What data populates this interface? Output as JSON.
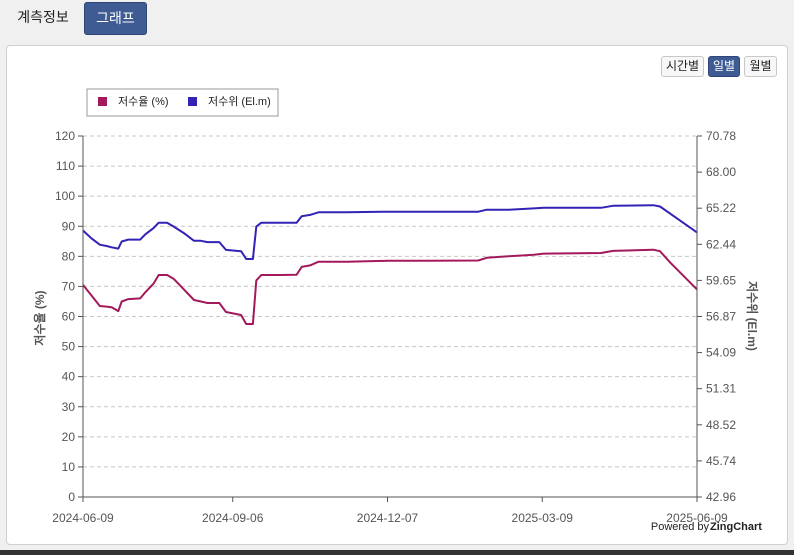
{
  "tabs": [
    {
      "label": "계측정보"
    },
    {
      "label": "그래프"
    }
  ],
  "period_buttons": [
    {
      "label": "시간별"
    },
    {
      "label": "일별"
    },
    {
      "label": "월별"
    }
  ],
  "powered_by": {
    "prefix": "Powered by ",
    "brand": "ZingChart"
  },
  "colors": {
    "series1": "#a3195b",
    "series2": "#3223b5",
    "active_tab": "#3e5b93"
  },
  "chart_data": {
    "type": "line",
    "legend": [
      "저수율 (%)",
      "저수위 (El.m)"
    ],
    "legend_position": "top-left",
    "grid": true,
    "y_left": {
      "label": "저수율 (%)",
      "min": 0,
      "max": 120,
      "ticks": [
        "0",
        "10",
        "20",
        "30",
        "40",
        "50",
        "60",
        "70",
        "80",
        "90",
        "100",
        "110",
        "120"
      ]
    },
    "y_right": {
      "label": "저수위 (El.m)",
      "min": 42.96,
      "max": 70.78,
      "ticks": [
        "42.96",
        "45.74",
        "48.52",
        "51.31",
        "54.09",
        "56.87",
        "59.65",
        "62.44",
        "65.22",
        "68.00",
        "70.78"
      ]
    },
    "x": {
      "start": "2024-06-09",
      "end": "2025-06-09",
      "tick_labels": [
        "2024-06-09",
        "2024-09-06",
        "2024-12-07",
        "2025-03-09",
        "2025-06-09"
      ]
    },
    "series": [
      {
        "name": "저수율 (%)",
        "axis": "left",
        "points": [
          [
            "2024-06-09",
            70.5
          ],
          [
            "2024-06-14",
            67
          ],
          [
            "2024-06-19",
            63.5
          ],
          [
            "2024-06-23",
            63.3
          ],
          [
            "2024-06-26",
            63.1
          ],
          [
            "2024-06-30",
            61.8
          ],
          [
            "2024-07-02",
            65
          ],
          [
            "2024-07-06",
            65.8
          ],
          [
            "2024-07-13",
            66
          ],
          [
            "2024-07-16",
            68
          ],
          [
            "2024-07-21",
            71
          ],
          [
            "2024-07-24",
            73.8
          ],
          [
            "2024-07-29",
            73.8
          ],
          [
            "2024-08-02",
            72.5
          ],
          [
            "2024-08-08",
            69
          ],
          [
            "2024-08-14",
            65.5
          ],
          [
            "2024-08-18",
            65
          ],
          [
            "2024-08-22",
            64.5
          ],
          [
            "2024-08-29",
            64.5
          ],
          [
            "2024-09-02",
            61.5
          ],
          [
            "2024-09-11",
            60.5
          ],
          [
            "2024-09-14",
            57.5
          ],
          [
            "2024-09-18",
            57.5
          ],
          [
            "2024-09-20",
            72
          ],
          [
            "2024-09-23",
            73.8
          ],
          [
            "2024-10-04",
            73.8
          ],
          [
            "2024-10-14",
            73.9
          ],
          [
            "2024-10-17",
            76.5
          ],
          [
            "2024-10-22",
            77
          ],
          [
            "2024-10-27",
            78.2
          ],
          [
            "2024-11-13",
            78.2
          ],
          [
            "2024-12-07",
            78.5
          ],
          [
            "2024-12-30",
            78.5
          ],
          [
            "2025-01-30",
            78.6
          ],
          [
            "2025-02-04",
            79.5
          ],
          [
            "2025-02-17",
            80
          ],
          [
            "2025-03-04",
            80.5
          ],
          [
            "2025-03-10",
            80.9
          ],
          [
            "2025-04-13",
            81.1
          ],
          [
            "2025-04-20",
            81.8
          ],
          [
            "2025-05-14",
            82.2
          ],
          [
            "2025-05-18",
            81.7
          ],
          [
            "2025-05-24",
            78
          ],
          [
            "2025-06-09",
            69
          ]
        ]
      },
      {
        "name": "저수위 (El.m)",
        "axis": "right",
        "points": [
          [
            "2024-06-09",
            63.5
          ],
          [
            "2024-06-14",
            62.9
          ],
          [
            "2024-06-19",
            62.4
          ],
          [
            "2024-06-23",
            62.3
          ],
          [
            "2024-06-26",
            62.2
          ],
          [
            "2024-06-30",
            62.1
          ],
          [
            "2024-07-02",
            62.65
          ],
          [
            "2024-07-06",
            62.8
          ],
          [
            "2024-07-13",
            62.8
          ],
          [
            "2024-07-16",
            63.2
          ],
          [
            "2024-07-21",
            63.7
          ],
          [
            "2024-07-24",
            64.1
          ],
          [
            "2024-07-29",
            64.1
          ],
          [
            "2024-08-02",
            63.8
          ],
          [
            "2024-08-08",
            63.3
          ],
          [
            "2024-08-14",
            62.7
          ],
          [
            "2024-08-18",
            62.7
          ],
          [
            "2024-08-22",
            62.6
          ],
          [
            "2024-08-29",
            62.6
          ],
          [
            "2024-09-02",
            62
          ],
          [
            "2024-09-11",
            61.9
          ],
          [
            "2024-09-14",
            61.3
          ],
          [
            "2024-09-18",
            61.3
          ],
          [
            "2024-09-20",
            63.8
          ],
          [
            "2024-09-23",
            64.1
          ],
          [
            "2024-10-04",
            64.1
          ],
          [
            "2024-10-14",
            64.1
          ],
          [
            "2024-10-17",
            64.6
          ],
          [
            "2024-10-22",
            64.7
          ],
          [
            "2024-10-27",
            64.9
          ],
          [
            "2024-11-13",
            64.9
          ],
          [
            "2024-12-07",
            64.95
          ],
          [
            "2024-12-30",
            64.95
          ],
          [
            "2025-01-30",
            64.95
          ],
          [
            "2025-02-04",
            65.1
          ],
          [
            "2025-02-17",
            65.1
          ],
          [
            "2025-03-04",
            65.2
          ],
          [
            "2025-03-10",
            65.25
          ],
          [
            "2025-04-13",
            65.25
          ],
          [
            "2025-04-20",
            65.4
          ],
          [
            "2025-05-14",
            65.45
          ],
          [
            "2025-05-18",
            65.35
          ],
          [
            "2025-05-24",
            64.8
          ],
          [
            "2025-06-09",
            63.35
          ]
        ]
      }
    ]
  }
}
